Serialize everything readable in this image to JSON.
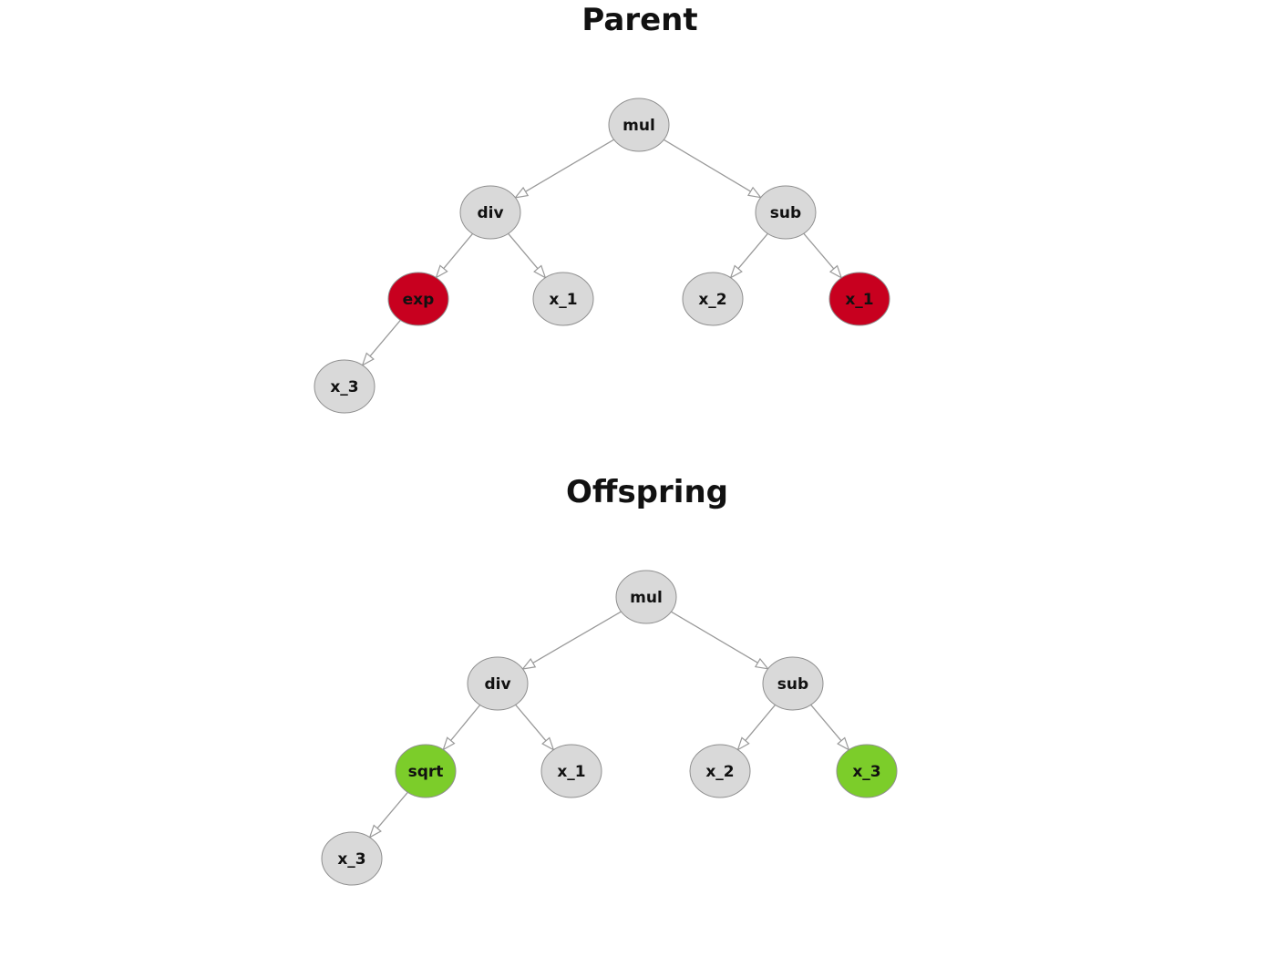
{
  "trees": [
    {
      "title": "Parent",
      "nodes": [
        {
          "id": "p0",
          "label": "mul",
          "color": "#d9d9d9"
        },
        {
          "id": "p1",
          "label": "div",
          "color": "#d9d9d9"
        },
        {
          "id": "p2",
          "label": "sub",
          "color": "#d9d9d9"
        },
        {
          "id": "p3",
          "label": "exp",
          "color": "#c8001f"
        },
        {
          "id": "p4",
          "label": "x_1",
          "color": "#d9d9d9"
        },
        {
          "id": "p5",
          "label": "x_2",
          "color": "#d9d9d9"
        },
        {
          "id": "p6",
          "label": "x_1",
          "color": "#c8001f"
        },
        {
          "id": "p7",
          "label": "x_3",
          "color": "#d9d9d9"
        }
      ],
      "edges": [
        [
          "p0",
          "p1"
        ],
        [
          "p0",
          "p2"
        ],
        [
          "p1",
          "p3"
        ],
        [
          "p1",
          "p4"
        ],
        [
          "p2",
          "p5"
        ],
        [
          "p2",
          "p6"
        ],
        [
          "p3",
          "p7"
        ]
      ]
    },
    {
      "title": "Offspring",
      "nodes": [
        {
          "id": "o0",
          "label": "mul",
          "color": "#d9d9d9"
        },
        {
          "id": "o1",
          "label": "div",
          "color": "#d9d9d9"
        },
        {
          "id": "o2",
          "label": "sub",
          "color": "#d9d9d9"
        },
        {
          "id": "o3",
          "label": "sqrt",
          "color": "#7ccd2a"
        },
        {
          "id": "o4",
          "label": "x_1",
          "color": "#d9d9d9"
        },
        {
          "id": "o5",
          "label": "x_2",
          "color": "#d9d9d9"
        },
        {
          "id": "o6",
          "label": "x_3",
          "color": "#7ccd2a"
        },
        {
          "id": "o7",
          "label": "x_3",
          "color": "#d9d9d9"
        }
      ],
      "edges": [
        [
          "o0",
          "o1"
        ],
        [
          "o0",
          "o2"
        ],
        [
          "o1",
          "o3"
        ],
        [
          "o1",
          "o4"
        ],
        [
          "o2",
          "o5"
        ],
        [
          "o2",
          "o6"
        ],
        [
          "o3",
          "o7"
        ]
      ]
    }
  ]
}
